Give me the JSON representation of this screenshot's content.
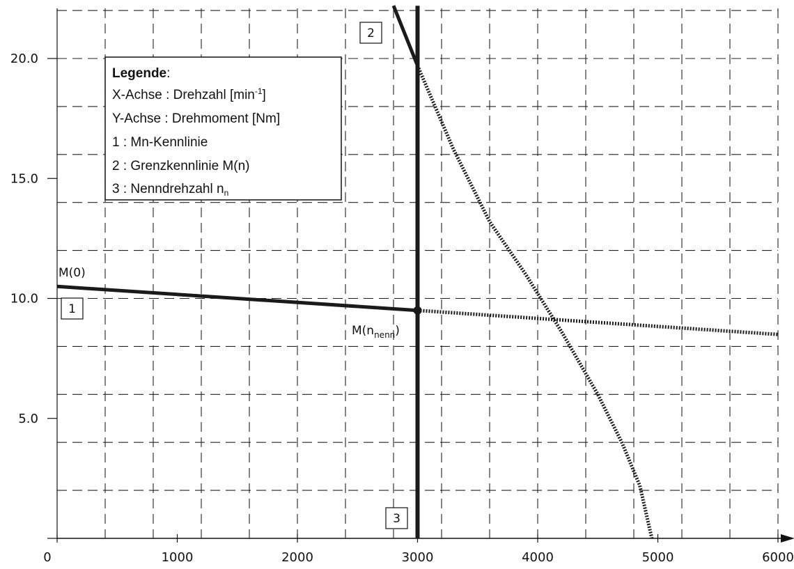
{
  "chart_data": {
    "type": "line",
    "xlim": [
      0,
      6000
    ],
    "ylim": [
      0,
      22
    ],
    "x_ticks": [
      "0",
      "1000",
      "2000",
      "3000",
      "4000",
      "5000",
      "6000"
    ],
    "y_ticks": [
      "5.0",
      "10.0",
      "15.0",
      "20.0"
    ],
    "grid": true,
    "grid_style": "dashed",
    "series": [
      {
        "id": "1",
        "label": "1",
        "style": "solid",
        "points": [
          [
            0,
            10.5
          ],
          [
            3000,
            9.5
          ]
        ]
      },
      {
        "id": "1-ext",
        "label": "",
        "style": "dotted",
        "points": [
          [
            3000,
            9.5
          ],
          [
            6000,
            8.5
          ]
        ]
      },
      {
        "id": "2",
        "label": "2",
        "style": "solid",
        "points": [
          [
            2800,
            22.2
          ],
          [
            3000,
            19.7
          ]
        ]
      },
      {
        "id": "2-ext",
        "label": "",
        "style": "dotted",
        "points": [
          [
            3000,
            19.7
          ],
          [
            3300,
            16.2
          ],
          [
            3600,
            13.2
          ],
          [
            3900,
            11.0
          ],
          [
            4200,
            8.6
          ],
          [
            4500,
            6.0
          ],
          [
            4700,
            4.0
          ],
          [
            4850,
            2.2
          ],
          [
            4950,
            0
          ]
        ]
      },
      {
        "id": "3",
        "label": "3",
        "style": "solid",
        "points": [
          [
            3000,
            0
          ],
          [
            3000,
            22.2
          ]
        ]
      }
    ],
    "point_markers": [
      {
        "x": 3000,
        "y": 9.5
      }
    ],
    "annotations": {
      "m0": "M(0)",
      "mnenn_main": "M(n",
      "mnenn_sub": "nenn",
      "mnenn_close": ")"
    },
    "legend": {
      "placement": "top-left",
      "title": "Legende",
      "title_suffix": ":",
      "x_axis_text": "X-Achse : Drehzahl [min",
      "x_axis_sup": "-1",
      "x_axis_close": "]",
      "y_axis_text": "Y-Achse : Drehmoment [Nm]",
      "item1": "1 : Mn-Kennlinie",
      "item2": "2 : Grenzkennlinie M(n)",
      "item3_text": "3 : Nenndrehzahl n",
      "item3_sub": "n"
    }
  }
}
